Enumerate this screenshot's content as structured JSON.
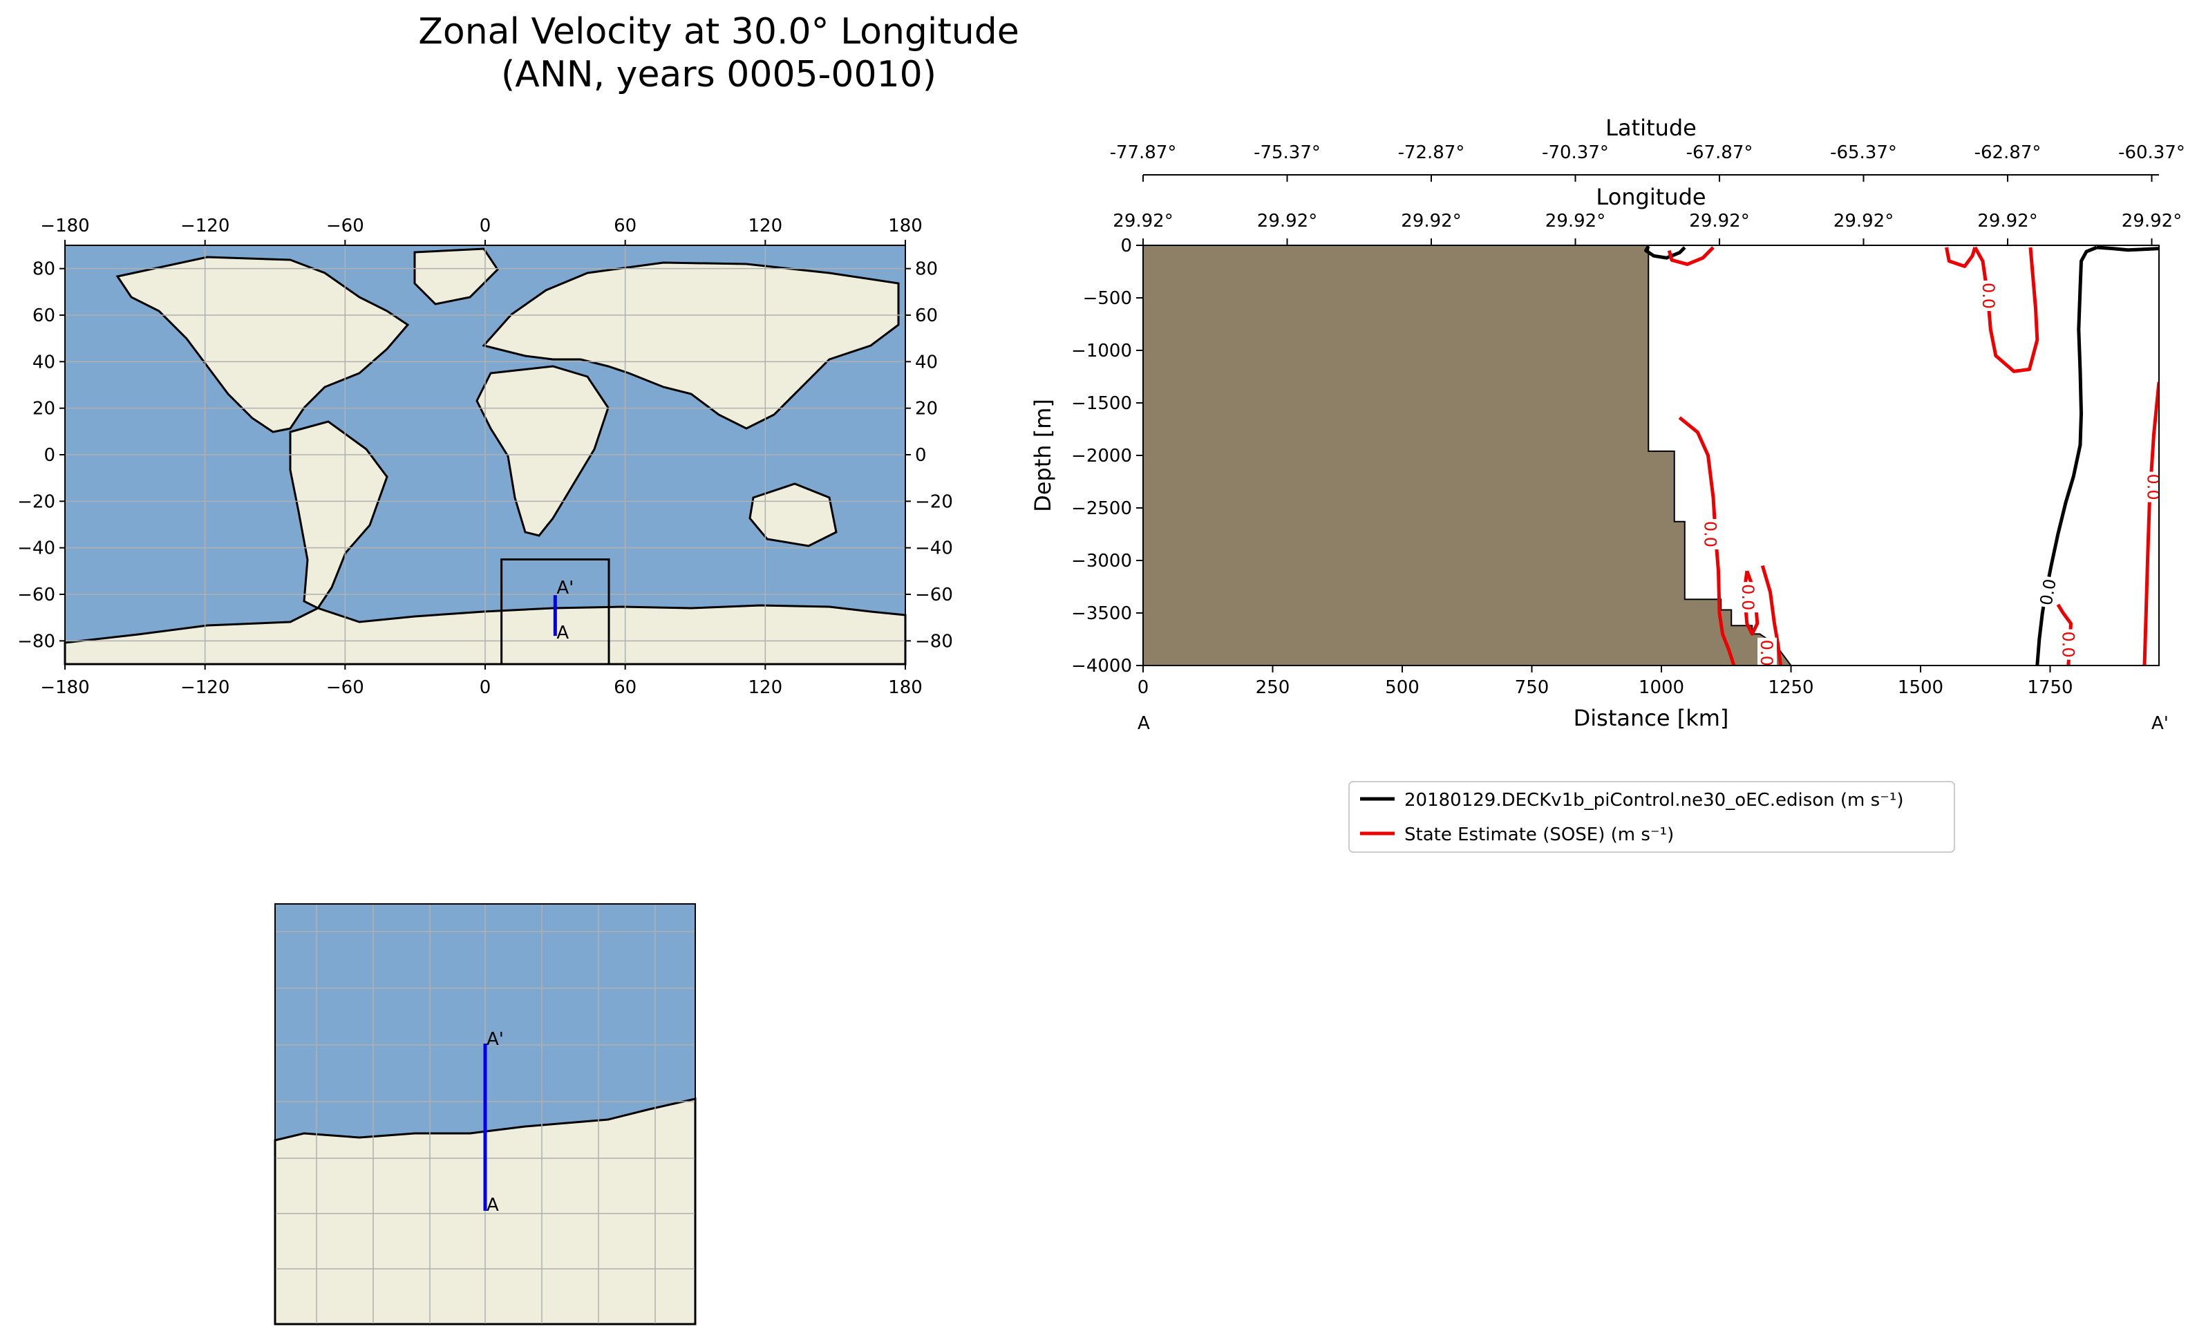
{
  "title": {
    "line1": "Zonal Velocity at 30.0° Longitude",
    "line2": "(ANN, years 0005-0010)"
  },
  "global_map": {
    "lon_ticks": [
      "−180",
      "−120",
      "−60",
      "0",
      "60",
      "120",
      "180"
    ],
    "lat_ticks": [
      "80",
      "60",
      "40",
      "20",
      "0",
      "−20",
      "−40",
      "−60",
      "−80"
    ],
    "ocean_color": "#7ea8d0",
    "land_color": "#efeddb",
    "transect_color": "#0000ee",
    "transect": {
      "lon": 30,
      "lat_start": -77.87,
      "lat_end": -60.37
    },
    "inset_box": {
      "lon_min": 7,
      "lon_max": 53,
      "lat_min": -90,
      "lat_max": -45
    },
    "point_a": "A",
    "point_a_prime": "A'"
  },
  "zoom_map": {
    "point_a": "A",
    "point_a_prime": "A'"
  },
  "chart_data": {
    "type": "line",
    "title": "",
    "xlabel": "Distance [km]",
    "ylabel": "Depth [m]",
    "xlim": [
      0,
      1960
    ],
    "ylim": [
      -4000,
      0
    ],
    "x_ticks": [
      0,
      250,
      500,
      750,
      1000,
      1250,
      1500,
      1750
    ],
    "y_ticks": [
      0,
      -500,
      -1000,
      -1500,
      -2000,
      -2500,
      -3000,
      -3500,
      -4000
    ],
    "x_tick_labels": [
      "0",
      "250",
      "500",
      "750",
      "1000",
      "1250",
      "1500",
      "1750"
    ],
    "y_tick_labels": [
      "0",
      "−500",
      "−1000",
      "−1500",
      "−2000",
      "−2500",
      "−3000",
      "−3500",
      "−4000"
    ],
    "end_labels": {
      "start": "A",
      "end": "A'"
    },
    "latitude_axis": {
      "label": "Latitude",
      "tick_positions_km": [
        0,
        278,
        556,
        834,
        1112,
        1390,
        1668,
        1946
      ],
      "tick_labels": [
        "-77.87°",
        "-75.37°",
        "-72.87°",
        "-70.37°",
        "-67.87°",
        "-65.37°",
        "-62.87°",
        "-60.37°"
      ]
    },
    "longitude_axis": {
      "label": "Longitude",
      "tick_positions_km": [
        0,
        278,
        556,
        834,
        1112,
        1390,
        1668,
        1946
      ],
      "tick_labels": [
        "29.92°",
        "29.92°",
        "29.92°",
        "29.92°",
        "29.92°",
        "29.92°",
        "29.92°",
        "29.92°"
      ]
    },
    "bathymetry": {
      "color": "#8e8066",
      "outline": [
        [
          0,
          0
        ],
        [
          975,
          0
        ],
        [
          975,
          -1960
        ],
        [
          1025,
          -1960
        ],
        [
          1025,
          -2630
        ],
        [
          1045,
          -2630
        ],
        [
          1045,
          -3370
        ],
        [
          1115,
          -3370
        ],
        [
          1115,
          -3470
        ],
        [
          1135,
          -3470
        ],
        [
          1135,
          -3620
        ],
        [
          1175,
          -3620
        ],
        [
          1175,
          -3700
        ],
        [
          1190,
          -3700
        ],
        [
          1220,
          -3800
        ],
        [
          1250,
          -4000
        ],
        [
          0,
          -4000
        ]
      ]
    },
    "contour_label": "0.0",
    "legend_location": "below right panel",
    "series": [
      {
        "name": "20180129.DECKv1b_piControl.ne30_oEC.edison (m s⁻¹)",
        "color": "#000000",
        "segments": [
          [
            [
              1840,
              -20
            ],
            [
              1870,
              -30
            ],
            [
              1900,
              -45
            ],
            [
              1920,
              -40
            ],
            [
              1960,
              -30
            ]
          ],
          [
            [
              1840,
              -20
            ],
            [
              1820,
              -60
            ],
            [
              1810,
              -150
            ],
            [
              1808,
              -400
            ],
            [
              1805,
              -800
            ],
            [
              1808,
              -1200
            ],
            [
              1810,
              -1600
            ],
            [
              1808,
              -1900
            ],
            [
              1795,
              -2200
            ],
            [
              1780,
              -2450
            ],
            [
              1765,
              -2750
            ],
            [
              1752,
              -3050
            ],
            [
              1742,
              -3300
            ],
            [
              1735,
              -3500
            ],
            [
              1729,
              -3750
            ],
            [
              1725,
              -4000
            ]
          ],
          [
            [
              1045,
              -20
            ],
            [
              1035,
              -70
            ],
            [
              1010,
              -120
            ],
            [
              985,
              -100
            ],
            [
              970,
              -50
            ],
            [
              975,
              -10
            ]
          ]
        ],
        "contour_labels": [
          {
            "text": "0.0",
            "x": 1745,
            "y": -3300,
            "rotate": -80
          }
        ]
      },
      {
        "name": "State Estimate (SOSE) (m s⁻¹)",
        "color": "#ee0000",
        "segments": [
          [
            [
              1100,
              -20
            ],
            [
              1080,
              -120
            ],
            [
              1050,
              -180
            ],
            [
              1020,
              -140
            ],
            [
              1015,
              -50
            ]
          ],
          [
            [
              1035,
              -1640
            ],
            [
              1070,
              -1780
            ],
            [
              1090,
              -2000
            ],
            [
              1100,
              -2400
            ],
            [
              1105,
              -2800
            ],
            [
              1110,
              -3100
            ],
            [
              1112,
              -3500
            ],
            [
              1118,
              -3700
            ],
            [
              1130,
              -3850
            ],
            [
              1140,
              -4000
            ]
          ],
          [
            [
              1165,
              -3100
            ],
            [
              1180,
              -3300
            ],
            [
              1185,
              -3600
            ],
            [
              1175,
              -3700
            ],
            [
              1165,
              -3600
            ],
            [
              1160,
              -3300
            ],
            [
              1165,
              -3100
            ]
          ],
          [
            [
              1195,
              -3050
            ],
            [
              1210,
              -3300
            ],
            [
              1218,
              -3600
            ],
            [
              1225,
              -3800
            ],
            [
              1230,
              -4000
            ]
          ],
          [
            [
              1550,
              -20
            ],
            [
              1555,
              -150
            ],
            [
              1585,
              -200
            ],
            [
              1600,
              -100
            ],
            [
              1605,
              -20
            ]
          ],
          [
            [
              1605,
              -20
            ],
            [
              1620,
              -150
            ],
            [
              1630,
              -500
            ],
            [
              1635,
              -800
            ],
            [
              1645,
              -1050
            ],
            [
              1680,
              -1200
            ],
            [
              1710,
              -1180
            ],
            [
              1725,
              -900
            ],
            [
              1722,
              -600
            ],
            [
              1715,
              -200
            ],
            [
              1712,
              -20
            ]
          ],
          [
            [
              1765,
              -3420
            ],
            [
              1775,
              -3500
            ],
            [
              1790,
              -3600
            ],
            [
              1788,
              -3800
            ],
            [
              1785,
              -4000
            ]
          ],
          [
            [
              1960,
              -1300
            ],
            [
              1950,
              -1800
            ],
            [
              1942,
              -2400
            ],
            [
              1938,
              -3000
            ],
            [
              1935,
              -3500
            ],
            [
              1932,
              -4000
            ]
          ]
        ],
        "contour_labels": [
          {
            "text": "0.0",
            "x": 1632,
            "y": -480,
            "rotate": 90
          },
          {
            "text": "0.0",
            "x": 1095,
            "y": -2750,
            "rotate": 90
          },
          {
            "text": "0.0",
            "x": 1168,
            "y": -3350,
            "rotate": 90
          },
          {
            "text": "0.0",
            "x": 1204,
            "y": -3880,
            "rotate": 90
          },
          {
            "text": "0.0",
            "x": 1786,
            "y": -3800,
            "rotate": 90
          },
          {
            "text": "0.0",
            "x": 1950,
            "y": -2300,
            "rotate": 90
          }
        ]
      }
    ]
  }
}
